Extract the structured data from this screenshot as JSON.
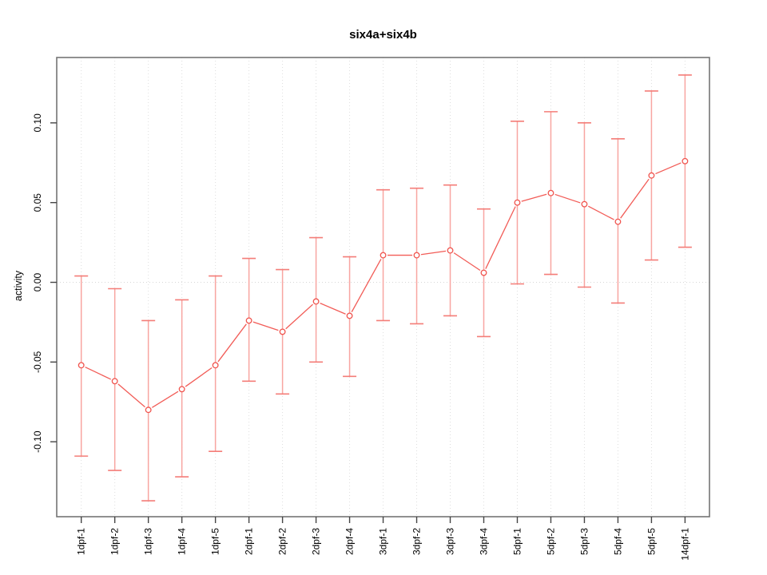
{
  "chart_data": {
    "type": "line",
    "title": "six4a+six4b",
    "xlabel": "",
    "ylabel": "activity",
    "legend": "none",
    "grid": "vertical dotted line at every category; horizontal dotted line at y=0",
    "categories": [
      "1dpf-1",
      "1dpf-2",
      "1dpf-3",
      "1dpf-4",
      "1dpf-5",
      "2dpf-1",
      "2dpf-2",
      "2dpf-3",
      "2dpf-4",
      "3dpf-1",
      "3dpf-2",
      "3dpf-3",
      "3dpf-4",
      "5dpf-1",
      "5dpf-2",
      "5dpf-3",
      "5dpf-4",
      "5dpf-5",
      "14dpf-1"
    ],
    "series": [
      {
        "name": "activity",
        "marker": "open-circle",
        "values": [
          -0.052,
          -0.062,
          -0.08,
          -0.067,
          -0.052,
          -0.024,
          -0.031,
          -0.012,
          -0.021,
          0.017,
          0.017,
          0.02,
          0.006,
          0.05,
          0.056,
          0.049,
          0.038,
          0.067,
          0.076
        ],
        "error_upper": [
          0.004,
          -0.004,
          -0.024,
          -0.011,
          0.004,
          0.015,
          0.008,
          0.028,
          0.016,
          0.058,
          0.059,
          0.061,
          0.046,
          0.101,
          0.107,
          0.1,
          0.09,
          0.12,
          0.13
        ],
        "error_lower": [
          -0.109,
          -0.118,
          -0.137,
          -0.122,
          -0.106,
          -0.062,
          -0.07,
          -0.05,
          -0.059,
          -0.024,
          -0.026,
          -0.021,
          -0.034,
          -0.001,
          0.005,
          -0.003,
          -0.013,
          0.014,
          0.022
        ]
      }
    ],
    "yticks": {
      "labels": [
        "0.10",
        "0.05",
        "0.00",
        "-0.05",
        "-0.10"
      ],
      "values": [
        0.1,
        0.05,
        0.0,
        -0.05,
        -0.1
      ]
    },
    "ylim": [
      -0.147,
      0.141
    ],
    "colors": {
      "series_line": "#f25c57",
      "marker_stroke": "#f0544e",
      "marker_fill": "#ffffff",
      "error_bar": "#f8a5a1",
      "error_cap": "#f47d78",
      "gridline": "#dedede",
      "zero_line": "#d6d6d6",
      "frame": "#757575",
      "tick": "#444444",
      "text": "#000000"
    }
  }
}
